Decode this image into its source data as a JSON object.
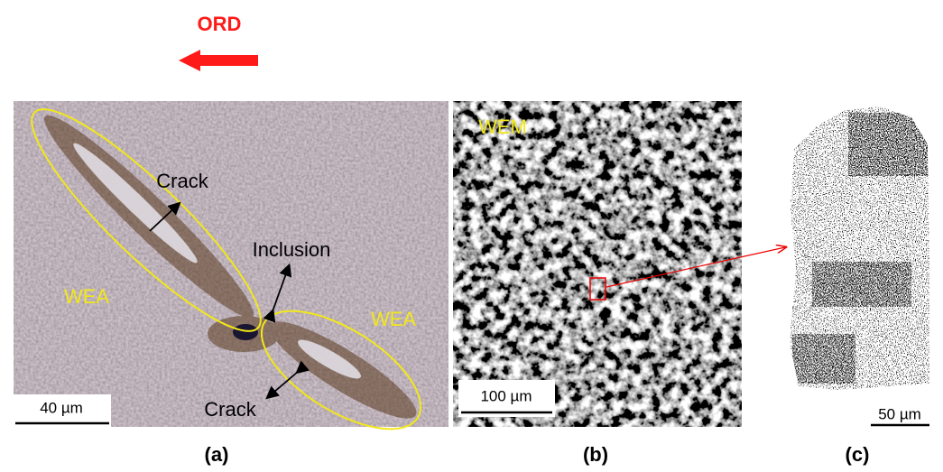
{
  "header": {
    "direction": "ORD"
  },
  "panels": [
    {
      "label": "(a)",
      "annotations": [
        "Crack",
        "Inclusion",
        "Crack"
      ],
      "regions": [
        "WEA",
        "WEA"
      ],
      "scale_bar": "40 µm"
    },
    {
      "label": "(b)",
      "region": "WEM",
      "scale_bar": "100 µm"
    },
    {
      "label": "(c)",
      "scale_bar": "50 µm"
    }
  ]
}
